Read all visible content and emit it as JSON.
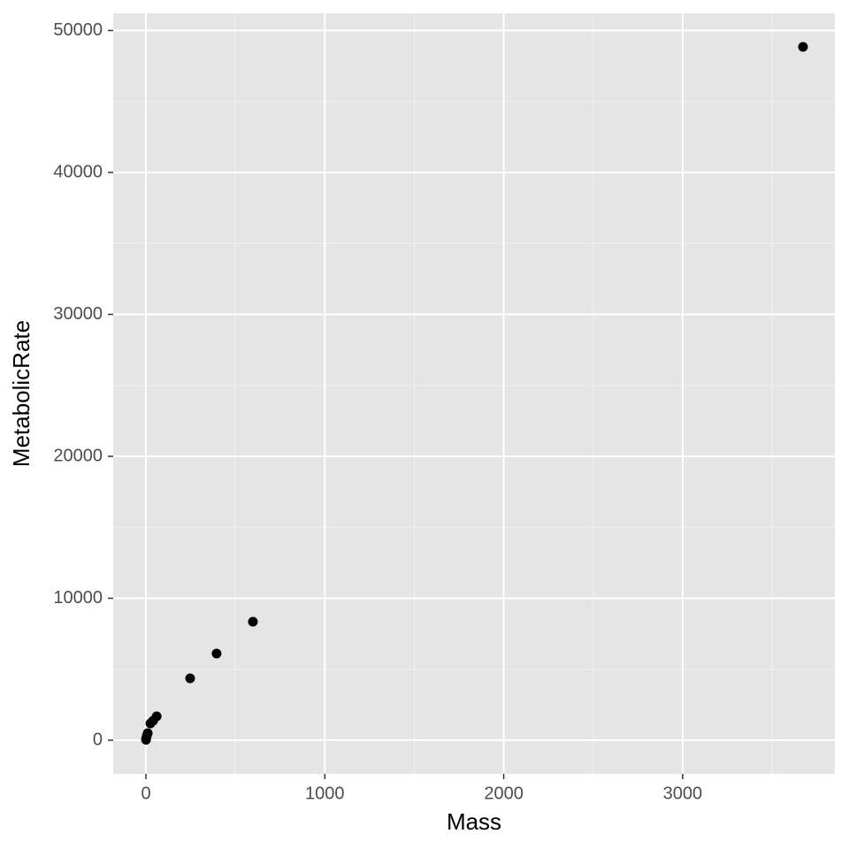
{
  "chart_data": {
    "type": "scatter",
    "x_label": "Mass",
    "y_label": "MetabolicRate",
    "x": [
      3673,
      598,
      395,
      247,
      60,
      40,
      25,
      10,
      5,
      1,
      0.5
    ],
    "series": [
      {
        "color": "#000000",
        "values": [
          48847,
          8349,
          6106,
          4361,
          1682,
          1371,
          1184,
          498,
          312,
          125,
          30
        ]
      }
    ],
    "xlim": [
      -183,
      3851
    ],
    "ylim": [
      -2368,
      51215
    ],
    "xticks": [
      0,
      1000,
      2000,
      3000
    ],
    "yticks": [
      0,
      10000,
      20000,
      30000,
      40000,
      50000
    ],
    "grid": true,
    "minor_grid": true,
    "panel_color": "#e5e5e5"
  }
}
